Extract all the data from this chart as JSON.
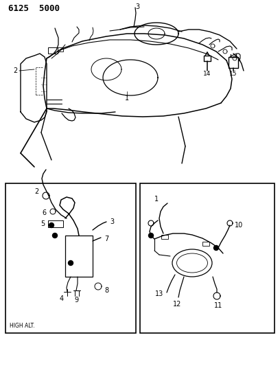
{
  "title": "6125  5000",
  "background_color": "#ffffff",
  "line_color": "#000000",
  "fig_width": 4.08,
  "fig_height": 5.33,
  "dpi": 100,
  "sub_label_left": "HIGH ALT."
}
